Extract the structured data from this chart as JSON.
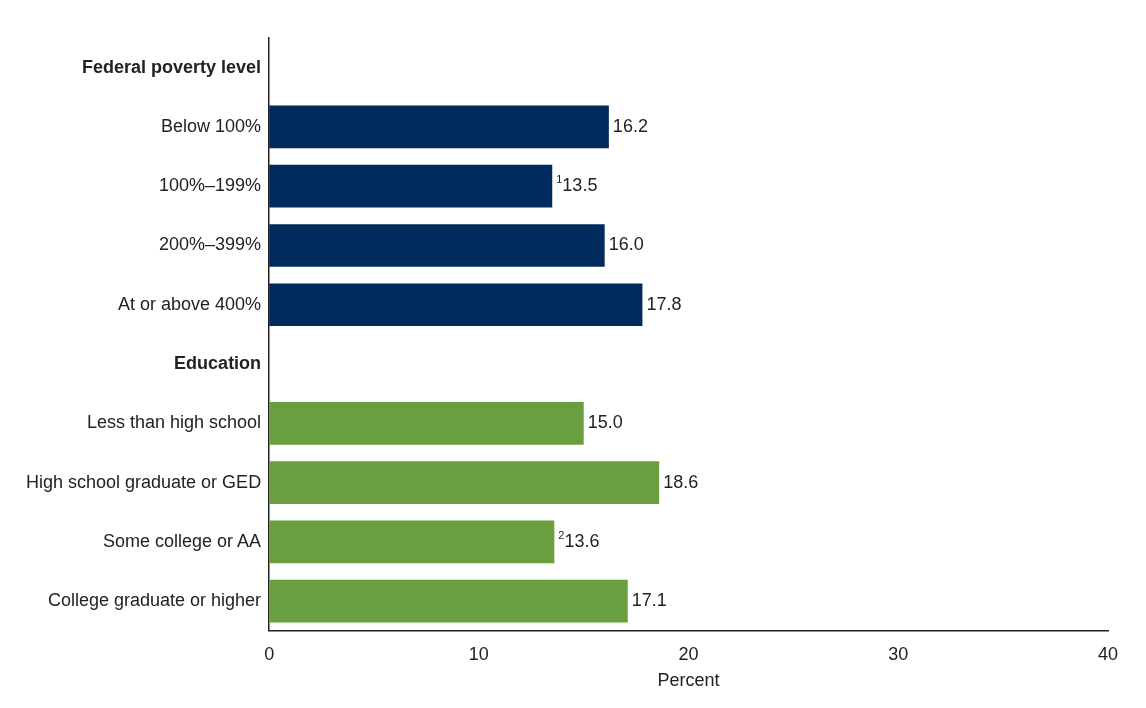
{
  "chart_data": {
    "type": "bar",
    "orientation": "horizontal",
    "xlabel": "Percent",
    "categories": [
      "Federal poverty level",
      "Below 100%",
      "100%–199%",
      "200%–399%",
      "At or above 400%",
      "Education",
      "Less than high school",
      "High school graduate or GED",
      "Some college or AA",
      "College graduate or higher"
    ],
    "values": [
      null,
      16.2,
      13.5,
      16.0,
      17.8,
      null,
      15.0,
      18.6,
      13.6,
      17.1
    ],
    "value_labels": [
      null,
      "16.2",
      "$^{1}$13.5",
      "16.0",
      "17.8",
      null,
      "15.0",
      "18.6",
      "$^{2}$13.6",
      "17.1"
    ],
    "colors": [
      null,
      "#002b5c",
      "#002b5c",
      "#002b5c",
      "#002b5c",
      null,
      "#6a9f3f",
      "#6a9f3f",
      "#6a9f3f",
      "#6a9f3f"
    ],
    "xlim": [
      0,
      40
    ],
    "xticks": [
      0,
      10,
      20,
      30,
      40
    ],
    "grid": false,
    "legend": false
  }
}
